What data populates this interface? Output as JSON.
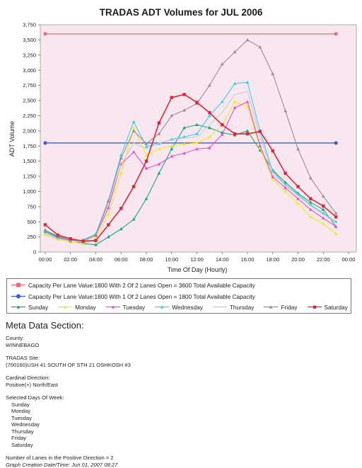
{
  "chart_data": {
    "type": "line",
    "title": "TRADAS ADT Volumes for JUL 2006",
    "xlabel": "Time Of Day (Hourly)",
    "ylabel": "ADT Volume",
    "ylim": [
      0,
      3750
    ],
    "yticks": [
      "0",
      "250",
      "500",
      "750",
      "1,000",
      "1,250",
      "1,500",
      "1,750",
      "2,000",
      "2,250",
      "2,500",
      "2,750",
      "3,000",
      "3,250",
      "3,500",
      "3,750"
    ],
    "xticks": [
      "00:00",
      "02:00",
      "04:00",
      "06:00",
      "08:00",
      "10:00",
      "12:00",
      "14:00",
      "16:00",
      "18:00",
      "20:00",
      "22:00",
      "00:00"
    ],
    "x": [
      0,
      1,
      2,
      3,
      4,
      5,
      6,
      7,
      8,
      9,
      10,
      11,
      12,
      13,
      14,
      15,
      16,
      17,
      18,
      19,
      20,
      21,
      22,
      23
    ],
    "grid": false,
    "legend_position": "bottom",
    "reference_lines": [
      {
        "name": "Capacity Per Lane Value:1800 With 2 Of 2 Lanes Open = 3600 Total Available Capacity",
        "value": 3600,
        "color": "#f06a6a",
        "marker": "square"
      },
      {
        "name": "Capacity Per Lane Value:1800 With 1 Of 2 Lanes Open = 1800 Total Available Capacity",
        "value": 1800,
        "color": "#3d5bd1",
        "marker": "circle"
      }
    ],
    "series": [
      {
        "name": "Sunday",
        "color": "#1aa67a",
        "marker": "triangle",
        "values": [
          360,
          260,
          200,
          140,
          120,
          250,
          380,
          540,
          880,
          1300,
          1700,
          2050,
          2100,
          2050,
          1970,
          1930,
          2000,
          1680,
          1350,
          1150,
          970,
          820,
          700,
          420
        ]
      },
      {
        "name": "Monday",
        "color": "#f2ea1e",
        "marker": "triangle",
        "values": [
          290,
          210,
          160,
          140,
          220,
          620,
          1300,
          2050,
          1600,
          1700,
          1750,
          1780,
          1800,
          1900,
          2100,
          2480,
          2400,
          1720,
          1200,
          1000,
          800,
          580,
          470,
          300
        ]
      },
      {
        "name": "Tuesday",
        "color": "#e64fd0",
        "marker": "triangle",
        "values": [
          330,
          240,
          190,
          170,
          270,
          730,
          1450,
          1650,
          1380,
          1450,
          1580,
          1630,
          1700,
          1720,
          1940,
          2380,
          2480,
          1750,
          1240,
          1060,
          880,
          700,
          560,
          420
        ]
      },
      {
        "name": "Wednesday",
        "color": "#3ccfe6",
        "marker": "triangle",
        "values": [
          330,
          230,
          180,
          200,
          300,
          850,
          1600,
          2150,
          1740,
          1790,
          1860,
          1900,
          1950,
          2250,
          2480,
          2780,
          2800,
          1990,
          1330,
          1110,
          950,
          780,
          640,
          500
        ]
      },
      {
        "name": "Thursday",
        "color": "#cccccc",
        "marker": "none",
        "values": [
          300,
          220,
          180,
          170,
          270,
          800,
          1450,
          1800,
          1700,
          1800,
          1850,
          1880,
          1900,
          2100,
          2300,
          2600,
          2650,
          1900,
          1300,
          1100,
          930,
          760,
          620,
          480
        ]
      },
      {
        "name": "Friday",
        "color": "#9a8a9a",
        "marker": "triangle",
        "values": [
          340,
          250,
          200,
          190,
          280,
          840,
          1550,
          2000,
          1790,
          1950,
          2250,
          2340,
          2450,
          2750,
          3100,
          3300,
          3500,
          3380,
          2940,
          2330,
          1700,
          1220,
          920,
          640
        ]
      },
      {
        "name": "Saturday",
        "color": "#d8283a",
        "marker": "square",
        "values": [
          450,
          280,
          220,
          180,
          190,
          450,
          720,
          1080,
          1500,
          2130,
          2550,
          2600,
          2470,
          2300,
          2100,
          1950,
          1950,
          1990,
          1670,
          1300,
          1080,
          880,
          760,
          580
        ]
      }
    ]
  },
  "legend": {
    "capacity_2_lanes": "Capacity Per Lane Value:1800 With 2 Of 2 Lanes Open = 3600 Total Available Capacity",
    "capacity_1_lane": "Capacity Per Lane Value:1800 With 1 Of 2 Lanes Open = 1800 Total Available Capacity"
  },
  "meta": {
    "heading": "Meta Data Section:",
    "county_label": "County:",
    "county_value": "WINNEBAGO",
    "site_label": "TRADAS Site:",
    "site_value": "(700160)USH 41 SOUTH OF STH 21 OSHKOSH #3",
    "direction_label": "Cardinal Direction:",
    "direction_value": "Positive(+) North/East",
    "days_label": "Selected Days Of Week:",
    "days": [
      "Sunday",
      "Monday",
      "Tuesday",
      "Wednesday",
      "Thursday",
      "Friday",
      "Saturday"
    ],
    "lanes_line": "Number of Lanes in the Positive Direction = 2",
    "created_line": "Graph Creation Date/Time: Jun 01, 2007 08:27"
  }
}
